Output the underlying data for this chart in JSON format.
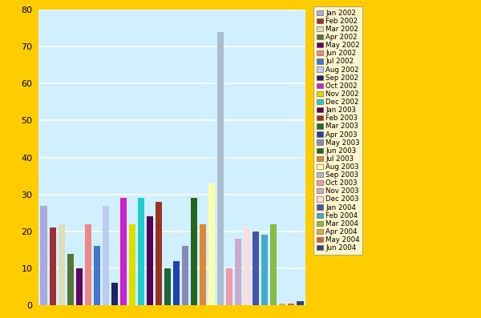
{
  "months": [
    "Jan 2002",
    "Feb 2002",
    "Mar 2002",
    "Apr 2002",
    "May 2002",
    "Jun 2002",
    "Jul 2002",
    "Aug 2002",
    "Sep 2002",
    "Oct 2002",
    "Nov 2002",
    "Dec 2002",
    "Jan 2003",
    "Feb 2003",
    "Mar 2003",
    "Apr 2003",
    "May 2003",
    "Jun 2003",
    "Jul 2003",
    "Aug 2003",
    "Sep 2003",
    "Oct 2003",
    "Nov 2003",
    "Dec 2003",
    "Jan 2004",
    "Feb 2004",
    "Mar 2004",
    "Apr 2004",
    "May 2004",
    "Jun 2004"
  ],
  "values": [
    27,
    21,
    22,
    14,
    10,
    22,
    16,
    27,
    6,
    29,
    22,
    29,
    24,
    28,
    10,
    12,
    16,
    29,
    22,
    33,
    74,
    10,
    18,
    21,
    20,
    19,
    22,
    0.5,
    0.5,
    1.2
  ],
  "colors": [
    "#aaaadd",
    "#993333",
    "#ddddbb",
    "#557733",
    "#660066",
    "#ee8888",
    "#4477cc",
    "#bbccee",
    "#222266",
    "#cc22cc",
    "#dddd00",
    "#22cccc",
    "#550055",
    "#993322",
    "#226633",
    "#2244aa",
    "#8888bb",
    "#226622",
    "#dd8833",
    "#ffffaa",
    "#aabbcc",
    "#ee99aa",
    "#ccaacc",
    "#ffdddd",
    "#4455aa",
    "#44aacc",
    "#88bb44",
    "#ddaa44",
    "#cc6633",
    "#334477"
  ],
  "background_color": "#d0f0ff",
  "outer_background": "#ffcc00",
  "grid_color": "#ffffff",
  "ylim": [
    0,
    80
  ],
  "yticks": [
    0,
    10,
    20,
    30,
    40,
    50,
    60,
    70,
    80
  ],
  "legend_fontsize": 6.2,
  "bar_width": 0.75
}
